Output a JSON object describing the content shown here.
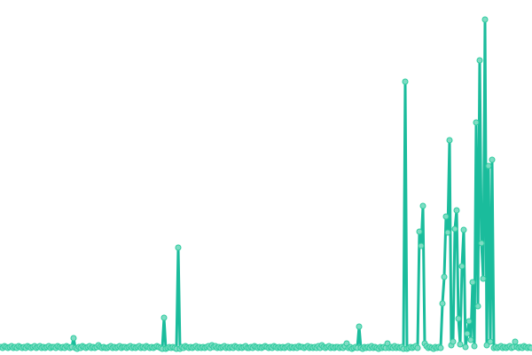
{
  "chart_data": {
    "type": "line",
    "title": "",
    "xlabel": "",
    "ylabel": "",
    "markers": true,
    "grid": false,
    "axes_visible": false,
    "ylim": [
      0,
      380
    ],
    "colors": {
      "line": "#1abc9c",
      "marker_fill": "#7fdcc4",
      "marker_stroke": "#2ecc9f"
    },
    "values": [
      4,
      3,
      5,
      4,
      3,
      4,
      5,
      3,
      4,
      3,
      5,
      4,
      3,
      4,
      3,
      5,
      4,
      3,
      4,
      5,
      3,
      4,
      5,
      3,
      4,
      3,
      4,
      5,
      3,
      4,
      4,
      3,
      5,
      4,
      3,
      4,
      3,
      5,
      4,
      3,
      4,
      14,
      3,
      2,
      4,
      3,
      5,
      4,
      3,
      4,
      5,
      3,
      4,
      3,
      4,
      6,
      4,
      3,
      4,
      3,
      3,
      4,
      5,
      3,
      4,
      3,
      4,
      5,
      3,
      4,
      4,
      3,
      4,
      5,
      3,
      4,
      3,
      4,
      5,
      3,
      4,
      3,
      5,
      4,
      3,
      4,
      3,
      4,
      5,
      4,
      3,
      2,
      37,
      2,
      3,
      4,
      3,
      4,
      3,
      2,
      116,
      2,
      4,
      3,
      5,
      4,
      3,
      4,
      3,
      4,
      5,
      3,
      4,
      3,
      4,
      3,
      4,
      5,
      3,
      6,
      4,
      5,
      3,
      4,
      3,
      4,
      5,
      3,
      4,
      3,
      4,
      3,
      5,
      4,
      3,
      4,
      3,
      4,
      5,
      3,
      3,
      4,
      3,
      5,
      4,
      3,
      4,
      3,
      4,
      5,
      4,
      3,
      4,
      3,
      5,
      4,
      3,
      4,
      3,
      4,
      3,
      4,
      5,
      3,
      4,
      3,
      4,
      3,
      5,
      4,
      4,
      3,
      4,
      5,
      3,
      4,
      3,
      4,
      3,
      5,
      3,
      6,
      4,
      3,
      4,
      5,
      3,
      4,
      3,
      4,
      4,
      3,
      4,
      3,
      5,
      8,
      3,
      4,
      2,
      3,
      4,
      3,
      27,
      3,
      2,
      4,
      3,
      4,
      3,
      5,
      3,
      4,
      3,
      2,
      4,
      3,
      4,
      3,
      8,
      3,
      4,
      3,
      5,
      3,
      4,
      3,
      4,
      2,
      303,
      2,
      3,
      4,
      3,
      4,
      5,
      3,
      134,
      118,
      163,
      8,
      5,
      3,
      4,
      3,
      2,
      4,
      3,
      4,
      3,
      53,
      83,
      151,
      133,
      237,
      6,
      10,
      137,
      158,
      36,
      7,
      95,
      136,
      4,
      19,
      33,
      12,
      77,
      5,
      257,
      50,
      327,
      121,
      81,
      373,
      6,
      208,
      10,
      215,
      3,
      4,
      3,
      4,
      5,
      3,
      4,
      3,
      4,
      5,
      3,
      4,
      10,
      4,
      3,
      4,
      3,
      5,
      4,
      3,
      4,
      3
    ]
  }
}
